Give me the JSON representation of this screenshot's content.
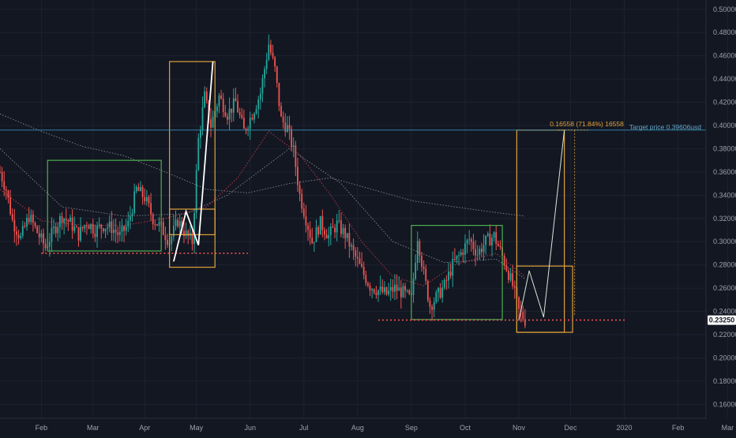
{
  "chart_data": {
    "type": "candlestick",
    "colors": {
      "background": "#131722",
      "up": "#26a69a",
      "down": "#ef5350",
      "grid": "#1e2230",
      "axis_text": "#9aa0ab",
      "box_orange": "#e0a23a",
      "box_green": "#4caf50",
      "support_line": "#ef5350",
      "target_line": "#3b8fb5",
      "target_text": "#5fa8c8",
      "price_tag_bg": "#ffffff",
      "projection_line": "#ffffff",
      "ma_red": "#b0384a",
      "ma_grey": "#7a7d88"
    },
    "y_axis": {
      "ticks": [
        "0.50000",
        "0.48000",
        "0.46000",
        "0.44000",
        "0.42000",
        "0.40000",
        "0.38000",
        "0.36000",
        "0.34000",
        "0.32000",
        "0.30000",
        "0.28000",
        "0.26000",
        "0.24000",
        "0.22000",
        "0.20000",
        "0.18000",
        "0.16000"
      ],
      "range": [
        0.148,
        0.508
      ]
    },
    "x_axis": {
      "ticks": [
        "Feb",
        "Mar",
        "Apr",
        "May",
        "Jun",
        "Jul",
        "Aug",
        "Sep",
        "Oct",
        "Nov",
        "Dec",
        "2020",
        "Feb",
        "Mar"
      ]
    },
    "current_price": "0.23250",
    "target": {
      "label": "Target price 0.39606usd",
      "value": 0.39606
    },
    "measure": {
      "label": "0.16558 (71.84%) 16558"
    },
    "price_series": [
      {
        "t": 0,
        "p": 0.36
      },
      {
        "t": 3,
        "p": 0.345
      },
      {
        "t": 6,
        "p": 0.318
      },
      {
        "t": 10,
        "p": 0.303
      },
      {
        "t": 14,
        "p": 0.322
      },
      {
        "t": 18,
        "p": 0.308
      },
      {
        "t": 22,
        "p": 0.295
      },
      {
        "t": 26,
        "p": 0.31
      },
      {
        "t": 30,
        "p": 0.322
      },
      {
        "t": 34,
        "p": 0.316
      },
      {
        "t": 38,
        "p": 0.306
      },
      {
        "t": 42,
        "p": 0.317
      },
      {
        "t": 46,
        "p": 0.31
      },
      {
        "t": 50,
        "p": 0.314
      },
      {
        "t": 54,
        "p": 0.312
      },
      {
        "t": 58,
        "p": 0.305
      },
      {
        "t": 62,
        "p": 0.315
      },
      {
        "t": 66,
        "p": 0.345
      },
      {
        "t": 70,
        "p": 0.338
      },
      {
        "t": 74,
        "p": 0.32
      },
      {
        "t": 78,
        "p": 0.312
      },
      {
        "t": 82,
        "p": 0.3
      },
      {
        "t": 86,
        "p": 0.318
      },
      {
        "t": 90,
        "p": 0.306
      },
      {
        "t": 93,
        "p": 0.3
      },
      {
        "t": 96,
        "p": 0.388
      },
      {
        "t": 99,
        "p": 0.425
      },
      {
        "t": 102,
        "p": 0.4
      },
      {
        "t": 106,
        "p": 0.425
      },
      {
        "t": 110,
        "p": 0.41
      },
      {
        "t": 114,
        "p": 0.42
      },
      {
        "t": 118,
        "p": 0.395
      },
      {
        "t": 122,
        "p": 0.41
      },
      {
        "t": 126,
        "p": 0.428
      },
      {
        "t": 130,
        "p": 0.47
      },
      {
        "t": 133,
        "p": 0.448
      },
      {
        "t": 136,
        "p": 0.405
      },
      {
        "t": 139,
        "p": 0.398
      },
      {
        "t": 142,
        "p": 0.378
      },
      {
        "t": 145,
        "p": 0.34
      },
      {
        "t": 148,
        "p": 0.32
      },
      {
        "t": 151,
        "p": 0.3
      },
      {
        "t": 155,
        "p": 0.316
      },
      {
        "t": 159,
        "p": 0.305
      },
      {
        "t": 163,
        "p": 0.315
      },
      {
        "t": 167,
        "p": 0.306
      },
      {
        "t": 171,
        "p": 0.29
      },
      {
        "t": 175,
        "p": 0.275
      },
      {
        "t": 179,
        "p": 0.262
      },
      {
        "t": 183,
        "p": 0.258
      },
      {
        "t": 187,
        "p": 0.255
      },
      {
        "t": 191,
        "p": 0.26
      },
      {
        "t": 195,
        "p": 0.256
      },
      {
        "t": 199,
        "p": 0.25
      },
      {
        "t": 202,
        "p": 0.305
      },
      {
        "t": 205,
        "p": 0.272
      },
      {
        "t": 208,
        "p": 0.245
      },
      {
        "t": 211,
        "p": 0.252
      },
      {
        "t": 215,
        "p": 0.262
      },
      {
        "t": 219,
        "p": 0.28
      },
      {
        "t": 223,
        "p": 0.29
      },
      {
        "t": 227,
        "p": 0.302
      },
      {
        "t": 231,
        "p": 0.29
      },
      {
        "t": 235,
        "p": 0.3
      },
      {
        "t": 239,
        "p": 0.305
      },
      {
        "t": 242,
        "p": 0.292
      },
      {
        "t": 245,
        "p": 0.278
      },
      {
        "t": 248,
        "p": 0.262
      },
      {
        "t": 251,
        "p": 0.24
      },
      {
        "t": 254,
        "p": 0.2325
      }
    ],
    "support_lines": [
      {
        "from": 20,
        "to": 120,
        "value": 0.29
      },
      {
        "from": 183,
        "to": 303,
        "value": 0.2325
      }
    ],
    "boxes": [
      {
        "name": "accumulation-box-1",
        "color": "box_green",
        "from": 23,
        "to": 78,
        "low": 0.292,
        "high": 0.37
      },
      {
        "name": "pattern-box-1",
        "color": "box_orange",
        "from": 82,
        "to": 104,
        "low": 0.306,
        "high": 0.455
      },
      {
        "name": "pattern-box-2",
        "color": "box_orange",
        "from": 82,
        "to": 104,
        "low": 0.278,
        "high": 0.328
      },
      {
        "name": "accumulation-box-2",
        "color": "box_green",
        "from": 199,
        "to": 243,
        "low": 0.233,
        "high": 0.314
      },
      {
        "name": "target-box",
        "color": "box_orange",
        "from": 250,
        "to": 273,
        "low": 0.222,
        "high": 0.396
      },
      {
        "name": "pattern-box-3",
        "color": "box_orange",
        "from": 250,
        "to": 277,
        "low": 0.222,
        "high": 0.279
      }
    ],
    "pattern_1": [
      {
        "t": 84,
        "p": 0.283
      },
      {
        "t": 90,
        "p": 0.326
      },
      {
        "t": 96,
        "p": 0.297
      },
      {
        "t": 103,
        "p": 0.455
      }
    ],
    "pattern_2": [
      {
        "t": 251,
        "p": 0.232
      },
      {
        "t": 256,
        "p": 0.275
      },
      {
        "t": 263,
        "p": 0.235
      },
      {
        "t": 273,
        "p": 0.396
      }
    ],
    "ma_fast": [
      {
        "t": 0,
        "p": 0.345
      },
      {
        "t": 20,
        "p": 0.318
      },
      {
        "t": 40,
        "p": 0.314
      },
      {
        "t": 60,
        "p": 0.314
      },
      {
        "t": 80,
        "p": 0.32
      },
      {
        "t": 100,
        "p": 0.33
      },
      {
        "t": 115,
        "p": 0.355
      },
      {
        "t": 130,
        "p": 0.395
      },
      {
        "t": 145,
        "p": 0.375
      },
      {
        "t": 160,
        "p": 0.34
      },
      {
        "t": 175,
        "p": 0.3
      },
      {
        "t": 190,
        "p": 0.27
      },
      {
        "t": 205,
        "p": 0.262
      },
      {
        "t": 220,
        "p": 0.28
      },
      {
        "t": 240,
        "p": 0.29
      },
      {
        "t": 254,
        "p": 0.27
      }
    ],
    "ma_slow": [
      {
        "t": 0,
        "p": 0.41
      },
      {
        "t": 20,
        "p": 0.395
      },
      {
        "t": 40,
        "p": 0.382
      },
      {
        "t": 60,
        "p": 0.374
      },
      {
        "t": 80,
        "p": 0.36
      },
      {
        "t": 100,
        "p": 0.345
      },
      {
        "t": 120,
        "p": 0.342
      },
      {
        "t": 140,
        "p": 0.35
      },
      {
        "t": 160,
        "p": 0.355
      },
      {
        "t": 180,
        "p": 0.345
      },
      {
        "t": 200,
        "p": 0.335
      },
      {
        "t": 220,
        "p": 0.33
      },
      {
        "t": 240,
        "p": 0.325
      },
      {
        "t": 254,
        "p": 0.322
      }
    ],
    "ma_mid": [
      {
        "t": 0,
        "p": 0.38
      },
      {
        "t": 30,
        "p": 0.33
      },
      {
        "t": 60,
        "p": 0.322
      },
      {
        "t": 90,
        "p": 0.324
      },
      {
        "t": 110,
        "p": 0.34
      },
      {
        "t": 140,
        "p": 0.38
      },
      {
        "t": 165,
        "p": 0.35
      },
      {
        "t": 190,
        "p": 0.3
      },
      {
        "t": 215,
        "p": 0.282
      },
      {
        "t": 240,
        "p": 0.285
      },
      {
        "t": 254,
        "p": 0.268
      }
    ]
  }
}
